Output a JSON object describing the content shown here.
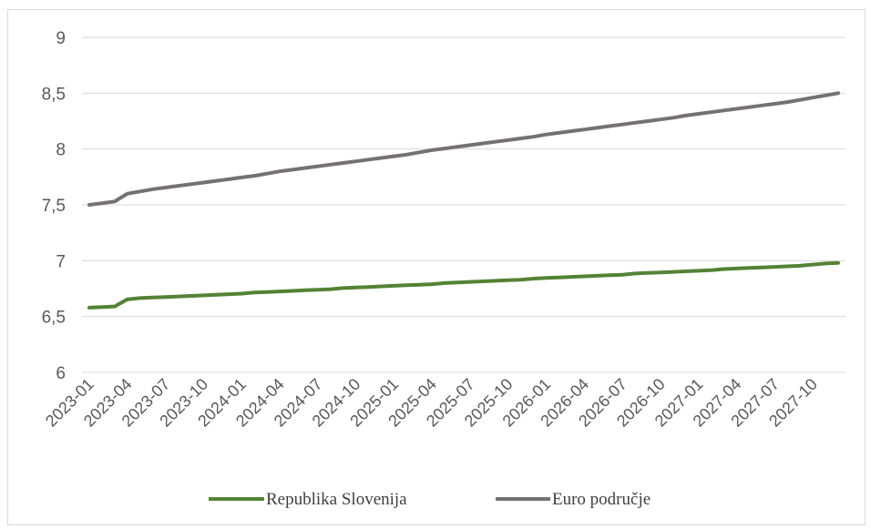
{
  "chart_data": {
    "type": "line",
    "title": "",
    "xlabel": "",
    "ylabel": "",
    "ylim": [
      6,
      9
    ],
    "yticks": [
      "6",
      "6,5",
      "7",
      "7,5",
      "8",
      "8,5",
      "9"
    ],
    "ytick_values": [
      6,
      6.5,
      7,
      7.5,
      8,
      8.5,
      9
    ],
    "grid": true,
    "legend_position": "bottom",
    "x": [
      "2023-01",
      "2023-02",
      "2023-03",
      "2023-04",
      "2023-05",
      "2023-06",
      "2023-07",
      "2023-08",
      "2023-09",
      "2023-10",
      "2023-11",
      "2023-12",
      "2024-01",
      "2024-02",
      "2024-03",
      "2024-04",
      "2024-05",
      "2024-06",
      "2024-07",
      "2024-08",
      "2024-09",
      "2024-10",
      "2024-11",
      "2024-12",
      "2025-01",
      "2025-02",
      "2025-03",
      "2025-04",
      "2025-05",
      "2025-06",
      "2025-07",
      "2025-08",
      "2025-09",
      "2025-10",
      "2025-11",
      "2025-12",
      "2026-01",
      "2026-02",
      "2026-03",
      "2026-04",
      "2026-05",
      "2026-06",
      "2026-07",
      "2026-08",
      "2026-09",
      "2026-10",
      "2026-11",
      "2026-12",
      "2027-01",
      "2027-02",
      "2027-03",
      "2027-04",
      "2027-05",
      "2027-06",
      "2027-07",
      "2027-08",
      "2027-09",
      "2027-10",
      "2027-11",
      "2027-12"
    ],
    "xtick_labels": [
      "2023-01",
      "2023-04",
      "2023-07",
      "2023-10",
      "2024-01",
      "2024-04",
      "2024-07",
      "2024-10",
      "2025-01",
      "2025-04",
      "2025-07",
      "2025-10",
      "2026-01",
      "2026-04",
      "2026-07",
      "2026-10",
      "2027-01",
      "2027-04",
      "2027-07",
      "2027-10"
    ],
    "series": [
      {
        "name": "Republika Slovenija",
        "color": "#548235",
        "values": [
          6.58,
          6.585,
          6.59,
          6.655,
          6.665,
          6.67,
          6.675,
          6.68,
          6.685,
          6.69,
          6.695,
          6.7,
          6.705,
          6.715,
          6.72,
          6.725,
          6.73,
          6.735,
          6.74,
          6.745,
          6.755,
          6.76,
          6.765,
          6.77,
          6.775,
          6.78,
          6.785,
          6.79,
          6.8,
          6.805,
          6.81,
          6.815,
          6.82,
          6.825,
          6.83,
          6.84,
          6.845,
          6.85,
          6.855,
          6.86,
          6.865,
          6.87,
          6.875,
          6.885,
          6.89,
          6.895,
          6.9,
          6.905,
          6.91,
          6.915,
          6.925,
          6.93,
          6.935,
          6.94,
          6.945,
          6.95,
          6.955,
          6.965,
          6.975,
          6.98
        ]
      },
      {
        "name": "Euro područje",
        "color": "#767171",
        "values": [
          7.5,
          7.515,
          7.53,
          7.6,
          7.62,
          7.64,
          7.655,
          7.67,
          7.685,
          7.7,
          7.715,
          7.73,
          7.745,
          7.76,
          7.78,
          7.8,
          7.815,
          7.83,
          7.845,
          7.86,
          7.875,
          7.89,
          7.905,
          7.92,
          7.935,
          7.95,
          7.97,
          7.99,
          8.005,
          8.02,
          8.035,
          8.05,
          8.065,
          8.08,
          8.095,
          8.11,
          8.13,
          8.145,
          8.16,
          8.175,
          8.19,
          8.205,
          8.22,
          8.235,
          8.25,
          8.265,
          8.28,
          8.3,
          8.315,
          8.33,
          8.345,
          8.36,
          8.375,
          8.39,
          8.405,
          8.42,
          8.44,
          8.46,
          8.48,
          8.5
        ]
      }
    ]
  }
}
